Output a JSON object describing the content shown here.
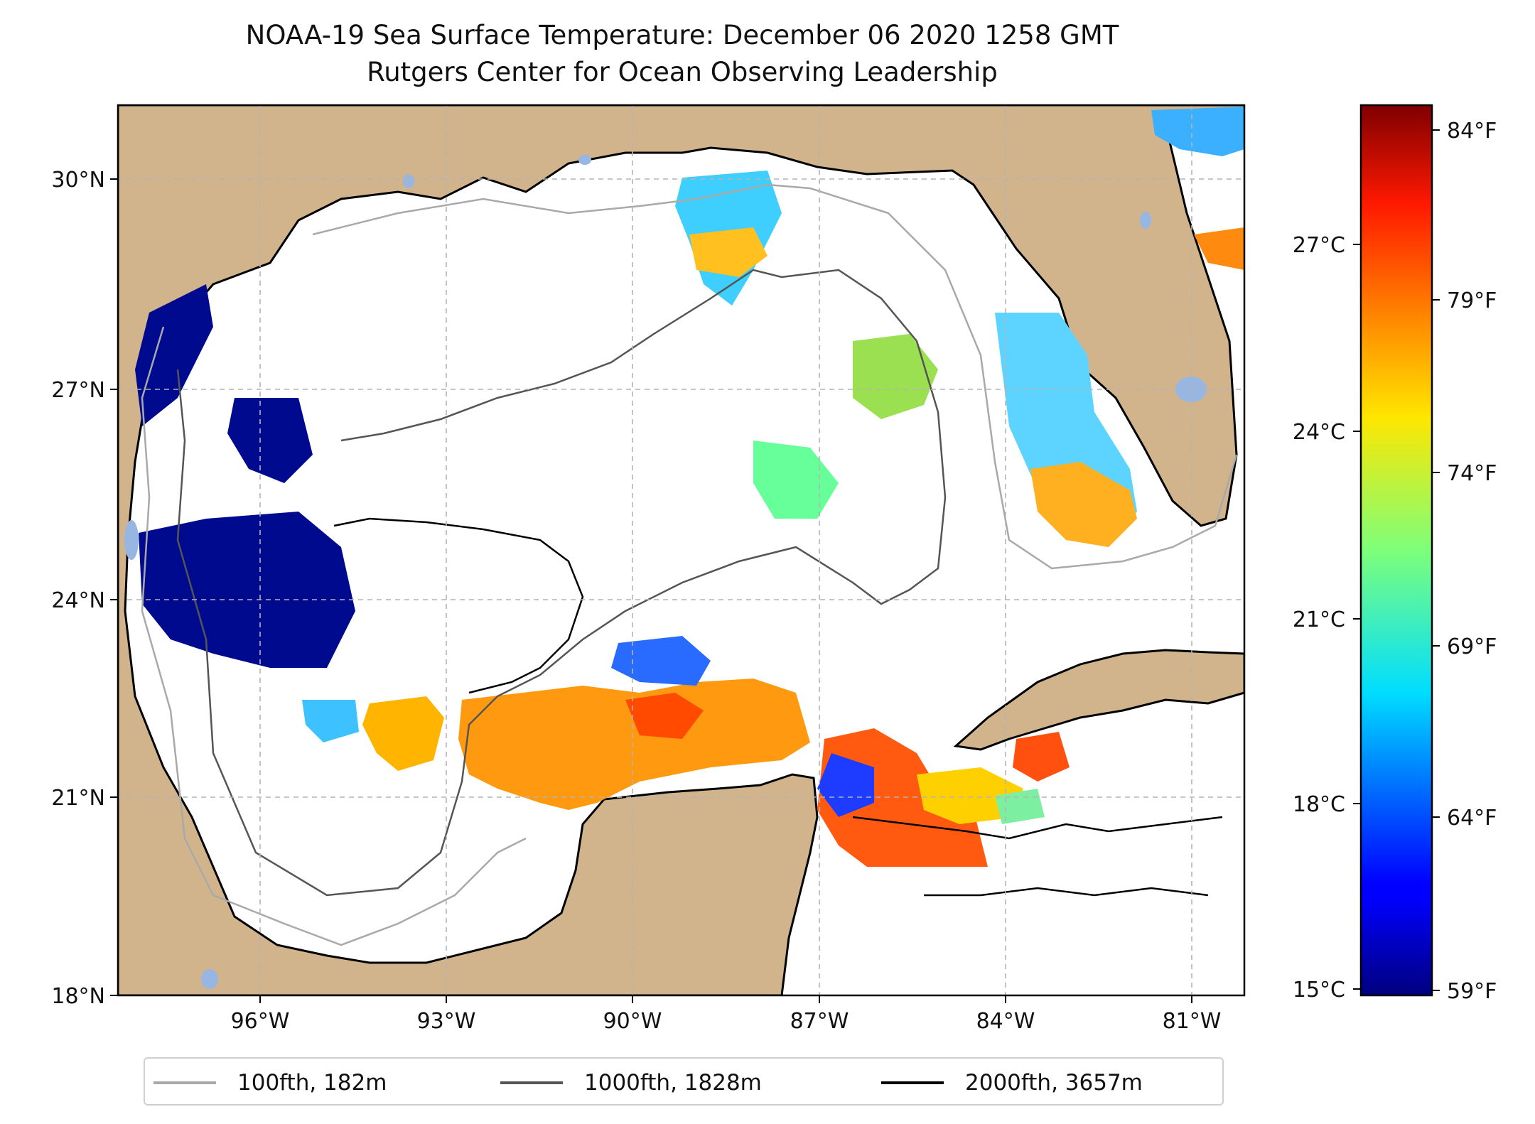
{
  "title": {
    "line1": "NOAA-19 Sea Surface Temperature: December 06 2020 1258 GMT",
    "line2": "Rutgers Center for Ocean Observing Leadership"
  },
  "map": {
    "lat_ticks": [
      "30°N",
      "27°N",
      "24°N",
      "21°N",
      "18°N"
    ],
    "lon_ticks": [
      "96°W",
      "93°W",
      "90°W",
      "87°W",
      "84°W",
      "81°W"
    ],
    "extent": {
      "lon": [
        -98.3,
        -80.3
      ],
      "lat": [
        18.0,
        30.9
      ]
    },
    "gridlines": true,
    "colors": {
      "land": "#d2b48c",
      "lakes": "#97b6e1",
      "coast": "#000000"
    }
  },
  "colorbar": {
    "celsius_ticks": [
      "27°C",
      "24°C",
      "21°C",
      "18°C",
      "15°C"
    ],
    "fahrenheit_ticks": [
      "84°F",
      "79°F",
      "74°F",
      "69°F",
      "64°F",
      "59°F"
    ],
    "range_c": [
      15.0,
      28.9
    ],
    "colormap": "jet"
  },
  "legend": {
    "items": [
      {
        "label": "100fth, 182m",
        "color": "#a9a9a9"
      },
      {
        "label": "1000fth, 1828m",
        "color": "#555555"
      },
      {
        "label": "2000fth, 3657m",
        "color": "#000000"
      }
    ]
  }
}
